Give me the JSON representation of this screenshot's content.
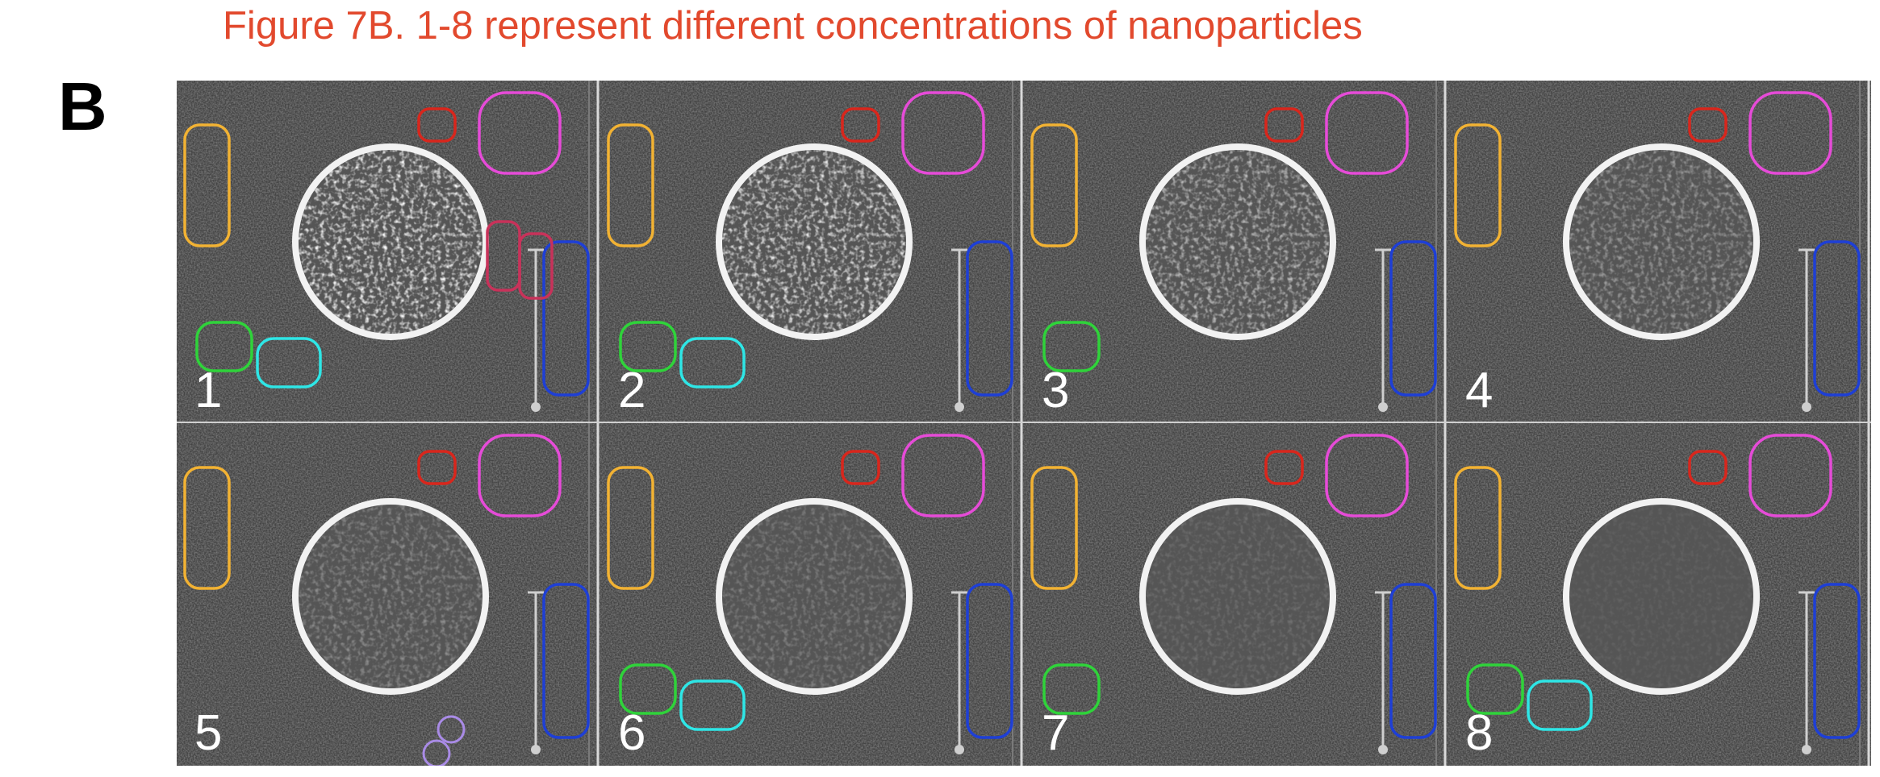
{
  "figure": {
    "caption": "Figure 7B. 1-8 represent different concentrations of nanoparticles",
    "panel_letter": "B",
    "panels": [
      {
        "label": "1"
      },
      {
        "label": "2"
      },
      {
        "label": "3"
      },
      {
        "label": "4"
      },
      {
        "label": "5"
      },
      {
        "label": "6"
      },
      {
        "label": "7"
      },
      {
        "label": "8"
      }
    ]
  },
  "colors": {
    "caption": "#e2492d",
    "roi_orange": "#f2b233",
    "roi_green": "#2fd33a",
    "roi_cyan": "#2ee6e6",
    "roi_red": "#d9261c",
    "roi_magenta": "#e64bd8",
    "roi_blue": "#1e3fd6",
    "roi_crimson": "#c8325a",
    "roi_lavender": "#a98be6"
  }
}
